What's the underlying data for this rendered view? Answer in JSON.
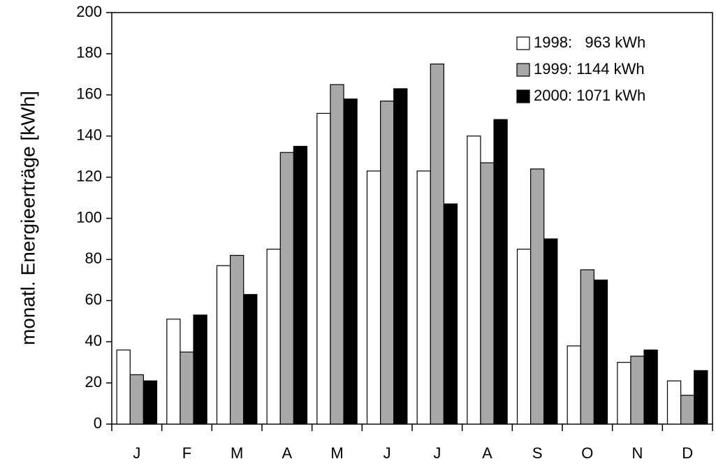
{
  "chart_data": {
    "type": "bar",
    "y_label": "monatl. Energieerträge [kWh]",
    "categories": [
      "J",
      "F",
      "M",
      "A",
      "M",
      "J",
      "J",
      "A",
      "S",
      "O",
      "N",
      "D"
    ],
    "series": [
      {
        "name": "1998:   963 kWh",
        "color": "#ffffff",
        "values": [
          36,
          51,
          77,
          85,
          151,
          123,
          123,
          140,
          85,
          38,
          30,
          21
        ]
      },
      {
        "name": "1999: 1144 kWh",
        "color": "#a8a8a8",
        "values": [
          24,
          35,
          82,
          132,
          165,
          157,
          175,
          127,
          124,
          75,
          33,
          14
        ]
      },
      {
        "name": "2000: 1071 kWh",
        "color": "#000000",
        "values": [
          21,
          53,
          63,
          135,
          158,
          163,
          107,
          148,
          90,
          70,
          36,
          26
        ]
      }
    ],
    "ylim": [
      0,
      200
    ],
    "yticks": [
      0,
      20,
      40,
      60,
      80,
      100,
      120,
      140,
      160,
      180,
      200
    ],
    "legend": "top-right"
  }
}
